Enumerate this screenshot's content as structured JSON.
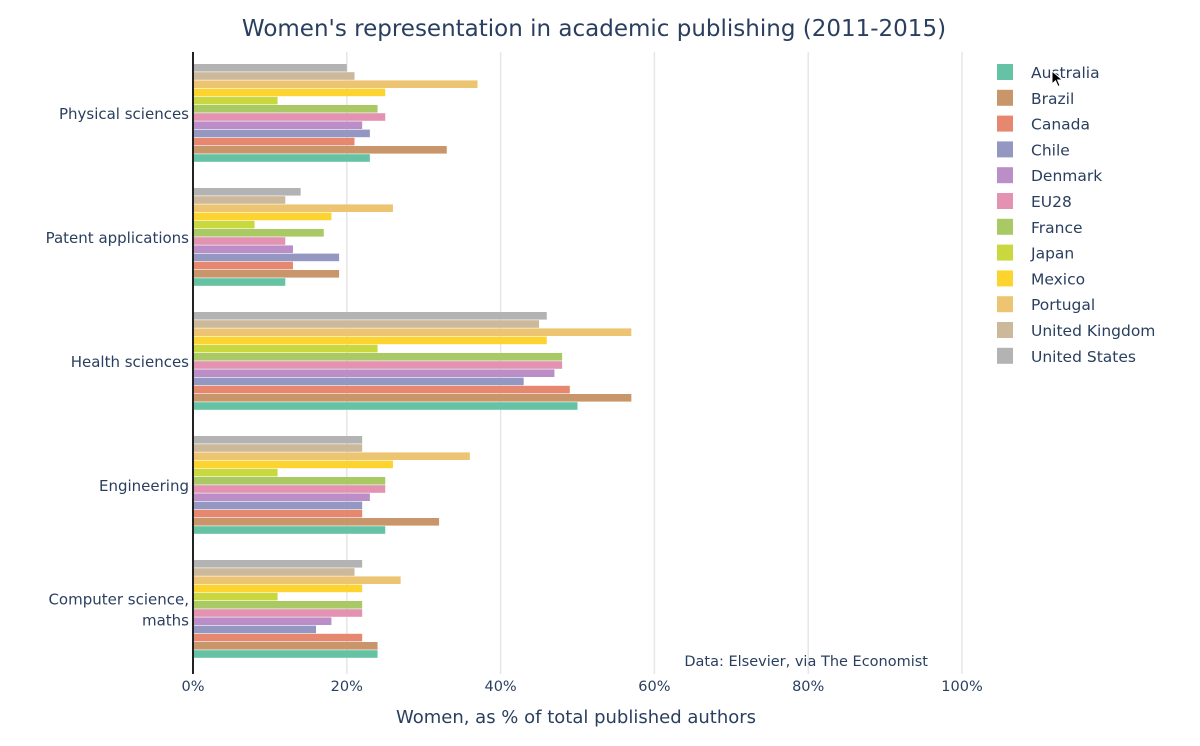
{
  "chart_data": {
    "type": "bar",
    "orientation": "horizontal",
    "title": "Women's representation in academic publishing (2011-2015)",
    "xlabel": "Women, as % of total published authors",
    "ylabel": "",
    "xlim": [
      0,
      100
    ],
    "x_ticks": [
      "0%",
      "20%",
      "40%",
      "60%",
      "80%",
      "100%"
    ],
    "x_tick_values": [
      0,
      20,
      40,
      60,
      80,
      100
    ],
    "grid": "vertical",
    "legend_position": "top-right",
    "annotation": "Data: Elsevier, via The Economist",
    "categories": [
      "Physical sciences",
      "Patent applications",
      "Health sciences",
      "Engineering",
      "Computer science, maths"
    ],
    "category_lines": [
      [
        "Physical sciences"
      ],
      [
        "Patent applications"
      ],
      [
        "Health sciences"
      ],
      [
        "Engineering"
      ],
      [
        "Computer science,",
        "maths"
      ]
    ],
    "series": [
      {
        "name": "Australia",
        "color": "#66c2a5",
        "values": [
          23,
          12,
          50,
          25,
          24
        ]
      },
      {
        "name": "Brazil",
        "color": "#c9956b",
        "values": [
          33,
          19,
          57,
          32,
          24
        ]
      },
      {
        "name": "Canada",
        "color": "#e5886f",
        "values": [
          21,
          13,
          49,
          22,
          22
        ]
      },
      {
        "name": "Chile",
        "color": "#9497c2",
        "values": [
          23,
          19,
          43,
          22,
          16
        ]
      },
      {
        "name": "Denmark",
        "color": "#bb8ec8",
        "values": [
          22,
          13,
          47,
          23,
          18
        ]
      },
      {
        "name": "EU28",
        "color": "#e393b1",
        "values": [
          25,
          12,
          48,
          25,
          22
        ]
      },
      {
        "name": "France",
        "color": "#a8c963",
        "values": [
          24,
          17,
          48,
          25,
          22
        ]
      },
      {
        "name": "Japan",
        "color": "#c9d83e",
        "values": [
          11,
          8,
          24,
          11,
          11
        ]
      },
      {
        "name": "Mexico",
        "color": "#fdd42f",
        "values": [
          25,
          18,
          46,
          26,
          22
        ]
      },
      {
        "name": "Portugal",
        "color": "#ecc472",
        "values": [
          37,
          26,
          57,
          36,
          27
        ]
      },
      {
        "name": "United Kingdom",
        "color": "#cbb99a",
        "values": [
          21,
          12,
          45,
          22,
          21
        ]
      },
      {
        "name": "United States",
        "color": "#b3b3b3",
        "values": [
          20,
          14,
          46,
          22,
          22
        ]
      }
    ]
  },
  "cursor": {
    "icon": "mouse-pointer-icon"
  }
}
